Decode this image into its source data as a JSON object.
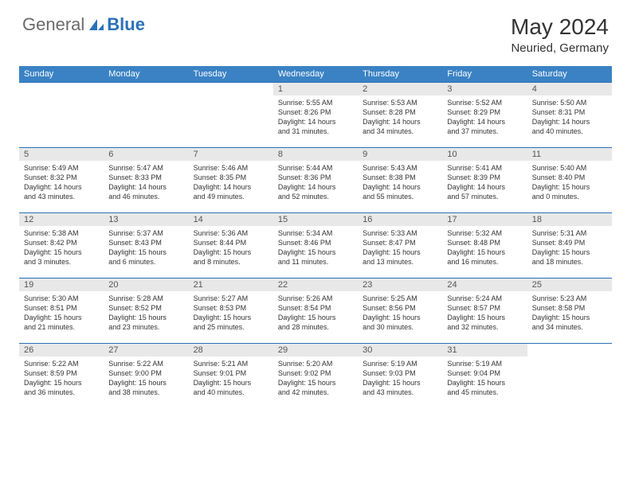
{
  "logo": {
    "text1": "General",
    "text2": "Blue"
  },
  "title": "May 2024",
  "location": "Neuried, Germany",
  "colors": {
    "header_bg": "#3a82c4",
    "header_text": "#ffffff",
    "border": "#2a71b8",
    "daynum_bg": "#e8e8e8",
    "text": "#333333",
    "logo_gray": "#6b6b6b",
    "logo_blue": "#2a71b8"
  },
  "weekdays": [
    "Sunday",
    "Monday",
    "Tuesday",
    "Wednesday",
    "Thursday",
    "Friday",
    "Saturday"
  ],
  "cells": [
    {
      "blank": true
    },
    {
      "blank": true
    },
    {
      "blank": true
    },
    {
      "day": "1",
      "sunrise": "Sunrise: 5:55 AM",
      "sunset": "Sunset: 8:26 PM",
      "dl1": "Daylight: 14 hours",
      "dl2": "and 31 minutes."
    },
    {
      "day": "2",
      "sunrise": "Sunrise: 5:53 AM",
      "sunset": "Sunset: 8:28 PM",
      "dl1": "Daylight: 14 hours",
      "dl2": "and 34 minutes."
    },
    {
      "day": "3",
      "sunrise": "Sunrise: 5:52 AM",
      "sunset": "Sunset: 8:29 PM",
      "dl1": "Daylight: 14 hours",
      "dl2": "and 37 minutes."
    },
    {
      "day": "4",
      "sunrise": "Sunrise: 5:50 AM",
      "sunset": "Sunset: 8:31 PM",
      "dl1": "Daylight: 14 hours",
      "dl2": "and 40 minutes."
    },
    {
      "day": "5",
      "sunrise": "Sunrise: 5:49 AM",
      "sunset": "Sunset: 8:32 PM",
      "dl1": "Daylight: 14 hours",
      "dl2": "and 43 minutes."
    },
    {
      "day": "6",
      "sunrise": "Sunrise: 5:47 AM",
      "sunset": "Sunset: 8:33 PM",
      "dl1": "Daylight: 14 hours",
      "dl2": "and 46 minutes."
    },
    {
      "day": "7",
      "sunrise": "Sunrise: 5:46 AM",
      "sunset": "Sunset: 8:35 PM",
      "dl1": "Daylight: 14 hours",
      "dl2": "and 49 minutes."
    },
    {
      "day": "8",
      "sunrise": "Sunrise: 5:44 AM",
      "sunset": "Sunset: 8:36 PM",
      "dl1": "Daylight: 14 hours",
      "dl2": "and 52 minutes."
    },
    {
      "day": "9",
      "sunrise": "Sunrise: 5:43 AM",
      "sunset": "Sunset: 8:38 PM",
      "dl1": "Daylight: 14 hours",
      "dl2": "and 55 minutes."
    },
    {
      "day": "10",
      "sunrise": "Sunrise: 5:41 AM",
      "sunset": "Sunset: 8:39 PM",
      "dl1": "Daylight: 14 hours",
      "dl2": "and 57 minutes."
    },
    {
      "day": "11",
      "sunrise": "Sunrise: 5:40 AM",
      "sunset": "Sunset: 8:40 PM",
      "dl1": "Daylight: 15 hours",
      "dl2": "and 0 minutes."
    },
    {
      "day": "12",
      "sunrise": "Sunrise: 5:38 AM",
      "sunset": "Sunset: 8:42 PM",
      "dl1": "Daylight: 15 hours",
      "dl2": "and 3 minutes."
    },
    {
      "day": "13",
      "sunrise": "Sunrise: 5:37 AM",
      "sunset": "Sunset: 8:43 PM",
      "dl1": "Daylight: 15 hours",
      "dl2": "and 6 minutes."
    },
    {
      "day": "14",
      "sunrise": "Sunrise: 5:36 AM",
      "sunset": "Sunset: 8:44 PM",
      "dl1": "Daylight: 15 hours",
      "dl2": "and 8 minutes."
    },
    {
      "day": "15",
      "sunrise": "Sunrise: 5:34 AM",
      "sunset": "Sunset: 8:46 PM",
      "dl1": "Daylight: 15 hours",
      "dl2": "and 11 minutes."
    },
    {
      "day": "16",
      "sunrise": "Sunrise: 5:33 AM",
      "sunset": "Sunset: 8:47 PM",
      "dl1": "Daylight: 15 hours",
      "dl2": "and 13 minutes."
    },
    {
      "day": "17",
      "sunrise": "Sunrise: 5:32 AM",
      "sunset": "Sunset: 8:48 PM",
      "dl1": "Daylight: 15 hours",
      "dl2": "and 16 minutes."
    },
    {
      "day": "18",
      "sunrise": "Sunrise: 5:31 AM",
      "sunset": "Sunset: 8:49 PM",
      "dl1": "Daylight: 15 hours",
      "dl2": "and 18 minutes."
    },
    {
      "day": "19",
      "sunrise": "Sunrise: 5:30 AM",
      "sunset": "Sunset: 8:51 PM",
      "dl1": "Daylight: 15 hours",
      "dl2": "and 21 minutes."
    },
    {
      "day": "20",
      "sunrise": "Sunrise: 5:28 AM",
      "sunset": "Sunset: 8:52 PM",
      "dl1": "Daylight: 15 hours",
      "dl2": "and 23 minutes."
    },
    {
      "day": "21",
      "sunrise": "Sunrise: 5:27 AM",
      "sunset": "Sunset: 8:53 PM",
      "dl1": "Daylight: 15 hours",
      "dl2": "and 25 minutes."
    },
    {
      "day": "22",
      "sunrise": "Sunrise: 5:26 AM",
      "sunset": "Sunset: 8:54 PM",
      "dl1": "Daylight: 15 hours",
      "dl2": "and 28 minutes."
    },
    {
      "day": "23",
      "sunrise": "Sunrise: 5:25 AM",
      "sunset": "Sunset: 8:56 PM",
      "dl1": "Daylight: 15 hours",
      "dl2": "and 30 minutes."
    },
    {
      "day": "24",
      "sunrise": "Sunrise: 5:24 AM",
      "sunset": "Sunset: 8:57 PM",
      "dl1": "Daylight: 15 hours",
      "dl2": "and 32 minutes."
    },
    {
      "day": "25",
      "sunrise": "Sunrise: 5:23 AM",
      "sunset": "Sunset: 8:58 PM",
      "dl1": "Daylight: 15 hours",
      "dl2": "and 34 minutes."
    },
    {
      "day": "26",
      "sunrise": "Sunrise: 5:22 AM",
      "sunset": "Sunset: 8:59 PM",
      "dl1": "Daylight: 15 hours",
      "dl2": "and 36 minutes."
    },
    {
      "day": "27",
      "sunrise": "Sunrise: 5:22 AM",
      "sunset": "Sunset: 9:00 PM",
      "dl1": "Daylight: 15 hours",
      "dl2": "and 38 minutes."
    },
    {
      "day": "28",
      "sunrise": "Sunrise: 5:21 AM",
      "sunset": "Sunset: 9:01 PM",
      "dl1": "Daylight: 15 hours",
      "dl2": "and 40 minutes."
    },
    {
      "day": "29",
      "sunrise": "Sunrise: 5:20 AM",
      "sunset": "Sunset: 9:02 PM",
      "dl1": "Daylight: 15 hours",
      "dl2": "and 42 minutes."
    },
    {
      "day": "30",
      "sunrise": "Sunrise: 5:19 AM",
      "sunset": "Sunset: 9:03 PM",
      "dl1": "Daylight: 15 hours",
      "dl2": "and 43 minutes."
    },
    {
      "day": "31",
      "sunrise": "Sunrise: 5:19 AM",
      "sunset": "Sunset: 9:04 PM",
      "dl1": "Daylight: 15 hours",
      "dl2": "and 45 minutes."
    },
    {
      "blank": true
    }
  ]
}
